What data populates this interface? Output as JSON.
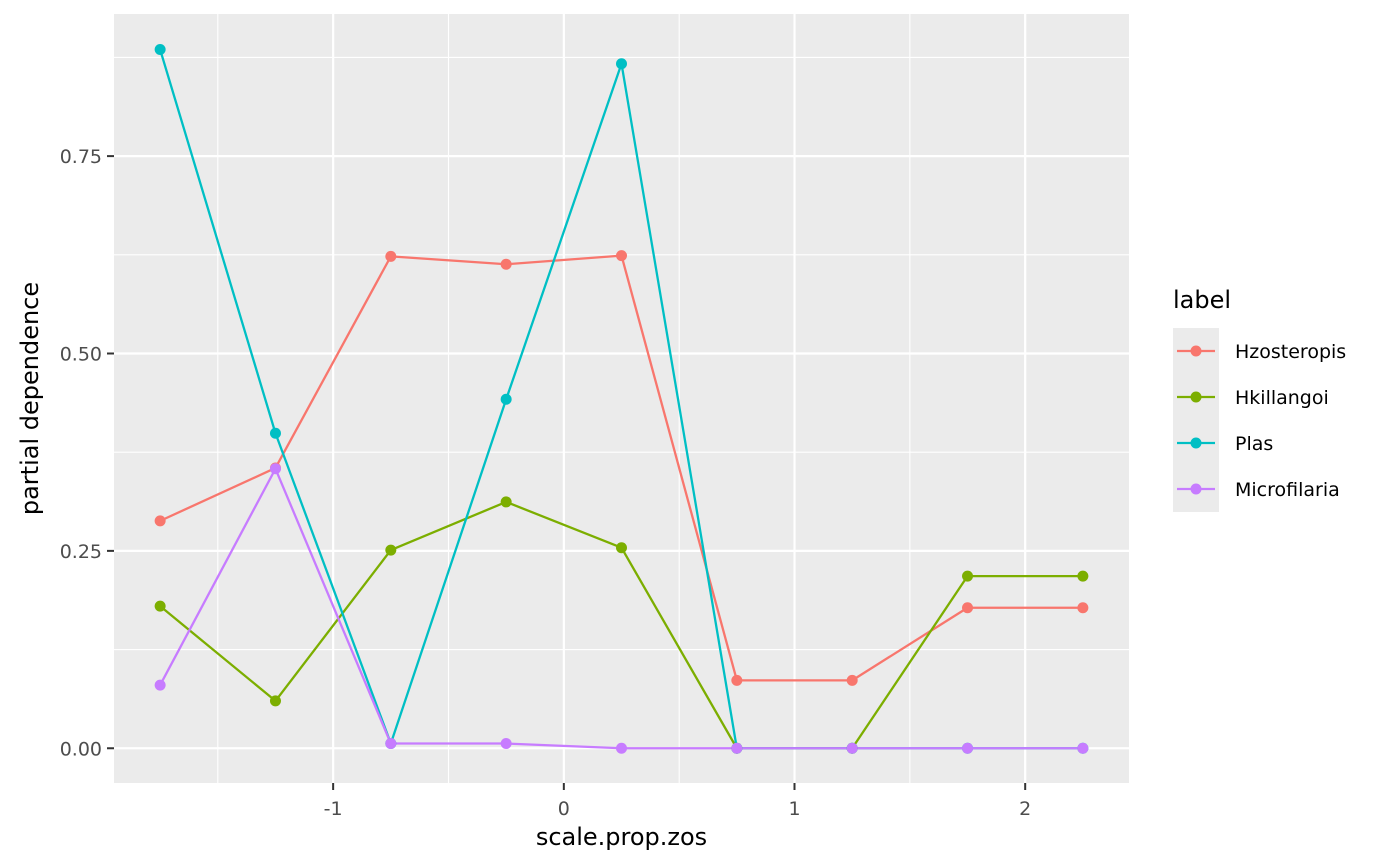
{
  "chart_data": {
    "type": "line",
    "xlabel": "scale.prop.zos",
    "ylabel": "partial dependence",
    "xlim": [
      -1.95,
      2.45
    ],
    "ylim": [
      -0.044,
      0.93
    ],
    "x_ticks": [
      -1,
      0,
      1,
      2
    ],
    "x_tick_labels": [
      "-1",
      "0",
      "1",
      "2"
    ],
    "y_ticks": [
      0,
      0.25,
      0.5,
      0.75
    ],
    "y_tick_labels": [
      "0.00",
      "0.25",
      "0.50",
      "0.75"
    ],
    "grid": true,
    "legend": {
      "title": "label",
      "placement": "right"
    },
    "x": [
      -1.75,
      -1.25,
      -0.75,
      -0.25,
      0.25,
      0.75,
      1.25,
      1.75,
      2.25
    ],
    "series": [
      {
        "name": "Hzosteropis",
        "color": "#F8766D",
        "values": [
          0.288,
          0.355,
          0.623,
          0.613,
          0.624,
          0.086,
          0.086,
          0.178,
          0.178
        ]
      },
      {
        "name": "Hkillangoi",
        "color": "#7CAE00",
        "values": [
          0.18,
          0.06,
          0.251,
          0.312,
          0.254,
          0.0,
          0.0,
          0.218,
          0.218
        ]
      },
      {
        "name": "Plas",
        "color": "#00BFC4",
        "values": [
          0.885,
          0.399,
          0.006,
          0.442,
          0.867,
          0.0,
          0.0,
          0.0,
          0.0
        ]
      },
      {
        "name": "Microfilaria",
        "color": "#C77CFF",
        "values": [
          0.08,
          0.354,
          0.006,
          0.006,
          0.0,
          0.0,
          0.0,
          0.0,
          0.0
        ]
      }
    ]
  }
}
